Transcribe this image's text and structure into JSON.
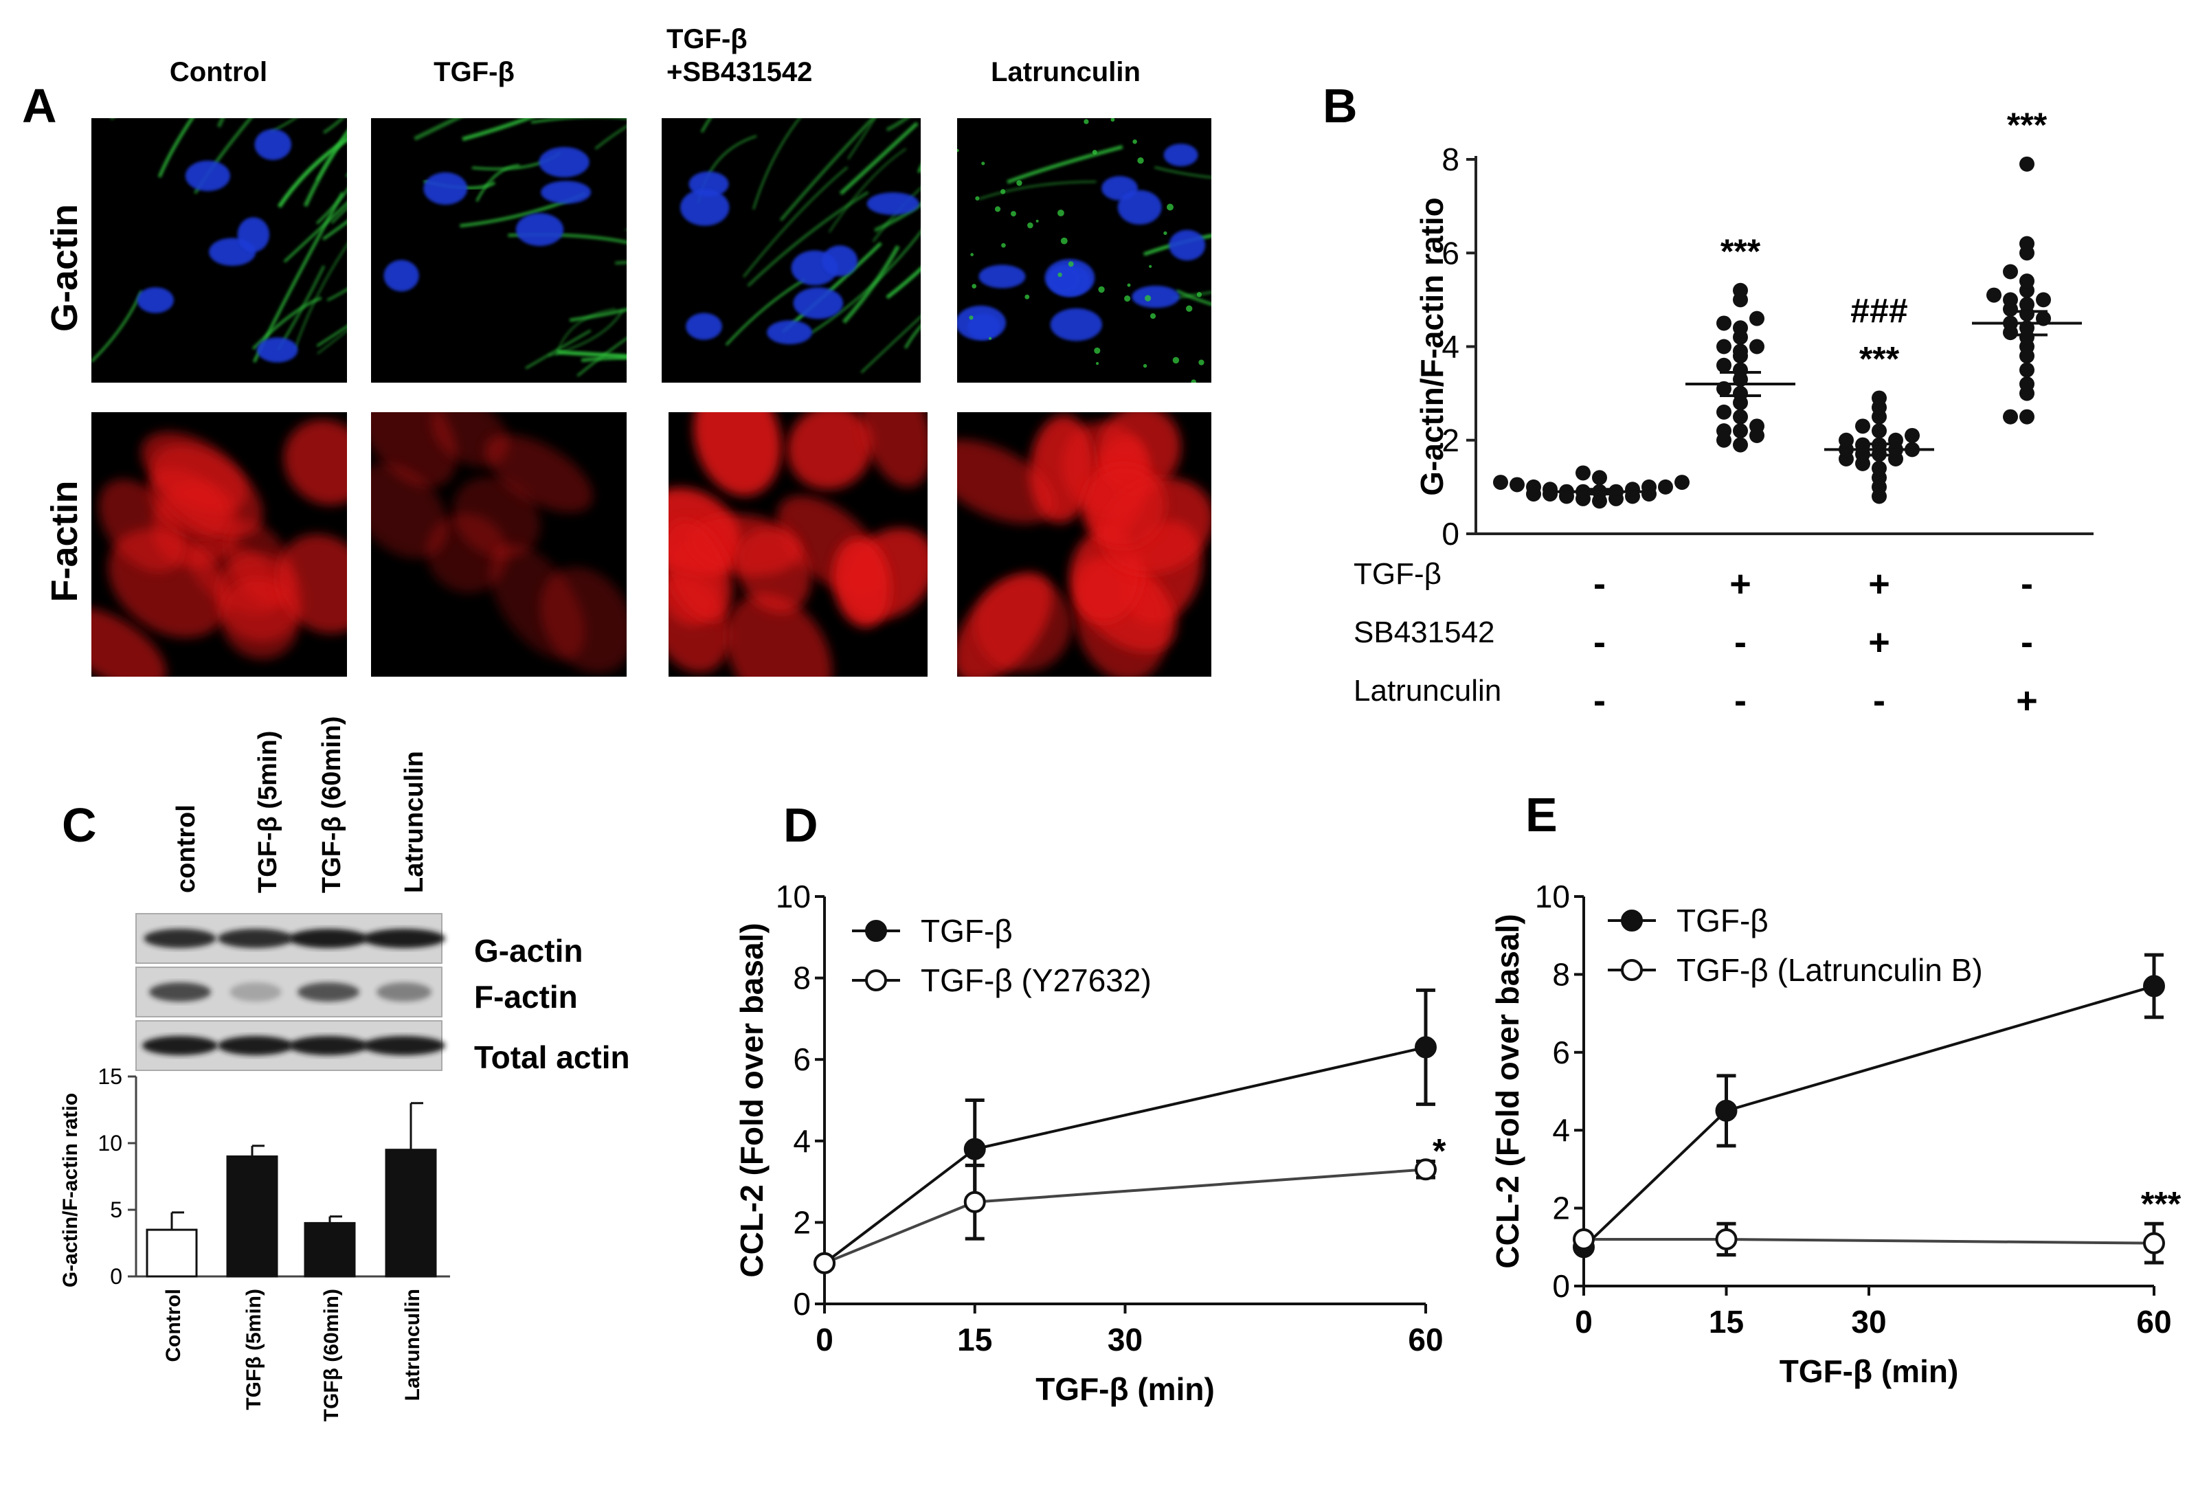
{
  "panelA": {
    "letter": "A",
    "columns": [
      "Control",
      "TGF-β",
      "TGF-β",
      "+SB431542",
      "Latrunculin"
    ],
    "rows": [
      "G-actin",
      "F-actin"
    ]
  },
  "panelB": {
    "letter": "B"
  },
  "panelC": {
    "letter": "C",
    "lanes": [
      "control",
      "TGF-β (5min)",
      "TGF-β (60min)",
      "Latrunculin"
    ],
    "blot_rows": [
      "G-actin",
      "F-actin",
      "Total actin"
    ]
  },
  "panelD": {
    "letter": "D"
  },
  "panelE": {
    "letter": "E"
  },
  "colors": {
    "green": "#2fbf3a",
    "blue": "#1f3bd6",
    "red": "#e01818",
    "black": "#111111"
  },
  "chart_data": [
    {
      "id": "B",
      "type": "scatter",
      "ylabel": "G-actin/F-actin ratio",
      "ylim": [
        0,
        8
      ],
      "yticks": [
        0,
        2,
        4,
        6,
        8
      ],
      "treatments": [
        {
          "name": "TGF-β",
          "signs": [
            "-",
            "+",
            "+",
            "-"
          ]
        },
        {
          "name": "SB431542",
          "signs": [
            "-",
            "-",
            "+",
            "-"
          ]
        },
        {
          "name": "Latrunculin",
          "signs": [
            "-",
            "-",
            "-",
            "+"
          ]
        }
      ],
      "groups": [
        {
          "mean": 0.9,
          "sem": 0.05,
          "annotation": "",
          "values": [
            0.7,
            0.75,
            0.8,
            0.8,
            0.85,
            0.85,
            0.9,
            0.9,
            0.9,
            0.95,
            0.95,
            1.0,
            1.0,
            1.05,
            1.1,
            1.1,
            1.2,
            1.3,
            0.75,
            0.85,
            0.9,
            1.0
          ]
        },
        {
          "mean": 3.2,
          "sem": 0.25,
          "annotation": "***",
          "values": [
            1.9,
            2.0,
            2.1,
            2.2,
            2.3,
            2.5,
            2.6,
            2.8,
            3.0,
            3.1,
            3.3,
            3.5,
            3.6,
            3.8,
            3.9,
            4.0,
            4.0,
            4.2,
            4.4,
            4.5,
            4.6,
            5.0,
            5.2,
            2.2
          ]
        },
        {
          "mean": 1.8,
          "sem": 0.12,
          "annotation": "###\n***",
          "values": [
            0.8,
            1.0,
            1.2,
            1.4,
            1.5,
            1.6,
            1.7,
            1.7,
            1.8,
            1.8,
            1.9,
            1.9,
            2.0,
            2.0,
            2.1,
            2.2,
            2.3,
            2.5,
            2.7,
            2.9,
            1.8,
            1.6
          ]
        },
        {
          "mean": 4.5,
          "sem": 0.25,
          "annotation": "***",
          "values": [
            2.5,
            2.5,
            3.0,
            3.2,
            3.5,
            3.8,
            4.0,
            4.2,
            4.4,
            4.5,
            4.6,
            4.7,
            4.8,
            4.9,
            5.0,
            5.0,
            5.1,
            5.2,
            5.4,
            5.6,
            6.0,
            6.2,
            7.9,
            4.3
          ]
        }
      ]
    },
    {
      "id": "C",
      "type": "bar",
      "ylabel": "G-actin/F-actin ratio",
      "ylim": [
        0,
        15
      ],
      "yticks": [
        0,
        5,
        10,
        15
      ],
      "categories": [
        "Control",
        "TGFβ (5min)",
        "TGFβ (60min)",
        "Latrunculin"
      ],
      "values": [
        3.5,
        9.0,
        4.0,
        9.5
      ],
      "errors": [
        1.3,
        0.8,
        0.5,
        3.5
      ],
      "fills": [
        "white",
        "black",
        "black",
        "black"
      ]
    },
    {
      "id": "D",
      "type": "line",
      "xlabel": "TGF-β (min)",
      "ylabel": "CCL-2  (Fold over basal)",
      "xlim": [
        0,
        60
      ],
      "ylim": [
        0,
        10
      ],
      "xticks": [
        0,
        15,
        30,
        60
      ],
      "yticks": [
        0,
        2,
        4,
        6,
        8,
        10
      ],
      "series": [
        {
          "name": "TGF-β",
          "filled": true,
          "x": [
            0,
            15,
            60
          ],
          "y": [
            1.0,
            3.8,
            6.3
          ],
          "err": [
            0.1,
            1.2,
            1.4
          ]
        },
        {
          "name": "TGF-β (Y27632)",
          "filled": false,
          "x": [
            0,
            15,
            60
          ],
          "y": [
            1.0,
            2.5,
            3.3
          ],
          "err": [
            0.1,
            0.9,
            0.2
          ]
        }
      ],
      "annotation": {
        "text": "*",
        "x": 60,
        "y": 3.3
      }
    },
    {
      "id": "E",
      "type": "line",
      "xlabel": "TGF-β (min)",
      "ylabel": "CCL-2  (Fold over basal)",
      "xlim": [
        0,
        60
      ],
      "ylim": [
        0,
        10
      ],
      "xticks": [
        0,
        15,
        30,
        60
      ],
      "yticks": [
        0,
        2,
        4,
        6,
        8,
        10
      ],
      "series": [
        {
          "name": "TGF-β",
          "filled": true,
          "x": [
            0,
            15,
            60
          ],
          "y": [
            1.0,
            4.5,
            7.7
          ],
          "err": [
            0.1,
            0.9,
            0.8
          ]
        },
        {
          "name": "TGF-β (Latrunculin B)",
          "filled": false,
          "x": [
            0,
            15,
            60
          ],
          "y": [
            1.2,
            1.2,
            1.1
          ],
          "err": [
            0.1,
            0.4,
            0.5
          ]
        }
      ],
      "annotation": {
        "text": "***",
        "x": 60,
        "y": 1.1
      }
    }
  ]
}
